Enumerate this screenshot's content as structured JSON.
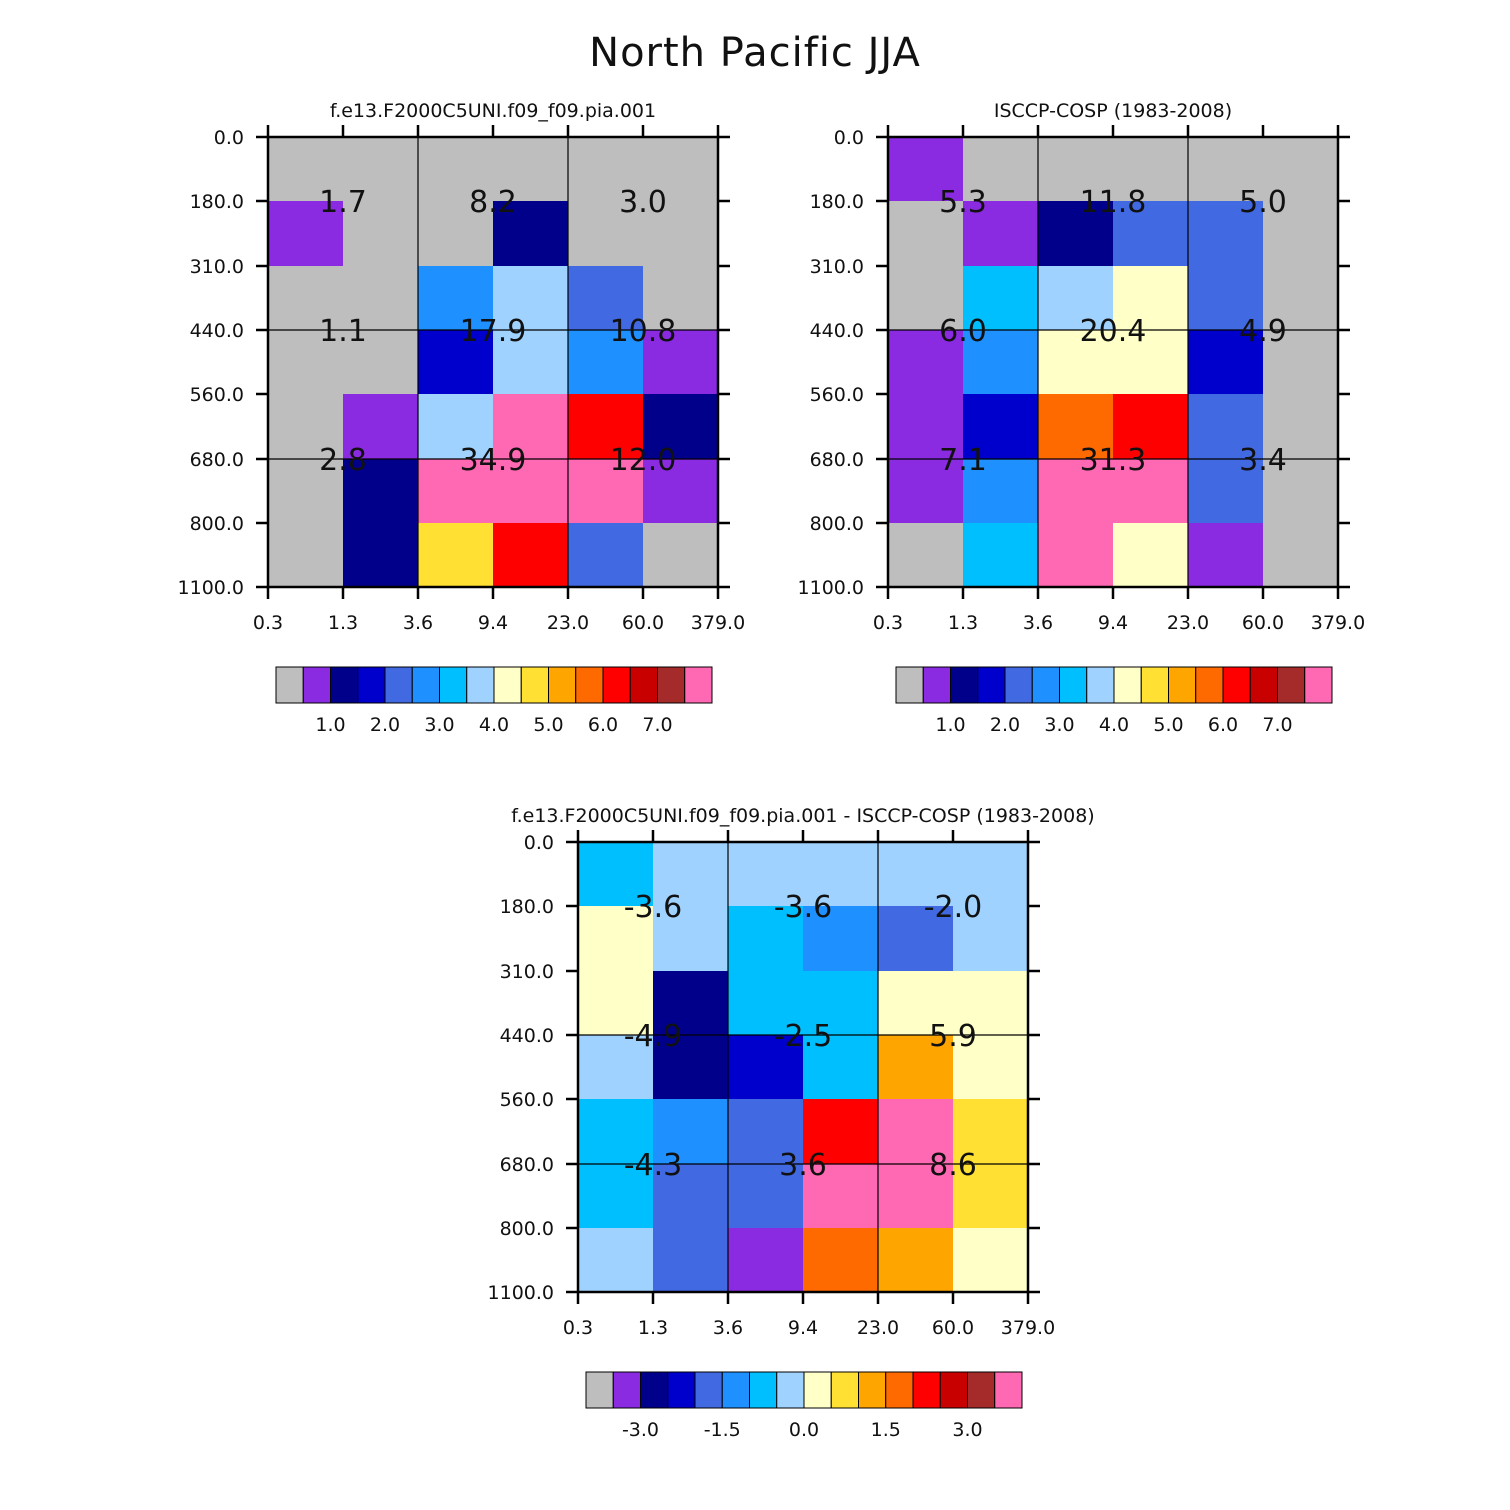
{
  "figure": {
    "title": "North Pacific JJA"
  },
  "palette": {
    "missing": "#bebebe",
    "bins": [
      "#8a2be2",
      "#00008b",
      "#0000cd",
      "#4169e1",
      "#1e90ff",
      "#00bfff",
      "#a0d2ff",
      "#ffffc8",
      "#ffe033",
      "#ffa500",
      "#ff6a00",
      "#ff0000",
      "#c80000",
      "#a52a2a",
      "#ff69b4"
    ]
  },
  "chart_data": [
    {
      "type": "heatmap",
      "id": "model",
      "title": "f.e13.F2000C5UNI.f09_f09.pia.001",
      "x_tick_labels": [
        "0.3",
        "1.3",
        "3.6",
        "9.4",
        "23.0",
        "60.0",
        "379.0"
      ],
      "y_tick_labels": [
        "0.0",
        "180.0",
        "310.0",
        "440.0",
        "560.0",
        "680.0",
        "800.0",
        "1100.0"
      ],
      "cells": [
        [
          0,
          0,
          0,
          0,
          0,
          0
        ],
        [
          1,
          0,
          0,
          2,
          0,
          0
        ],
        [
          0,
          0,
          5,
          7,
          4,
          0
        ],
        [
          0,
          0,
          3,
          7,
          5,
          1
        ],
        [
          0,
          1,
          7,
          15,
          12,
          2
        ],
        [
          0,
          2,
          15,
          15,
          15,
          1
        ],
        [
          0,
          2,
          9,
          12,
          4,
          0
        ]
      ],
      "box_labels": [
        [
          "1.7",
          "8.2",
          "3.0"
        ],
        [
          "1.1",
          "17.9",
          "10.8"
        ],
        [
          "2.8",
          "34.9",
          "12.0"
        ]
      ],
      "colorbar": {
        "tick_labels": [
          "1.0",
          "2.0",
          "3.0",
          "4.0",
          "5.0",
          "6.0",
          "7.0"
        ]
      }
    },
    {
      "type": "heatmap",
      "id": "obs",
      "title": "ISCCP-COSP (1983-2008)",
      "x_tick_labels": [
        "0.3",
        "1.3",
        "3.6",
        "9.4",
        "23.0",
        "60.0",
        "379.0"
      ],
      "y_tick_labels": [
        "0.0",
        "180.0",
        "310.0",
        "440.0",
        "560.0",
        "680.0",
        "800.0",
        "1100.0"
      ],
      "cells": [
        [
          1,
          0,
          0,
          0,
          0,
          0
        ],
        [
          0,
          1,
          2,
          4,
          4,
          0
        ],
        [
          0,
          6,
          7,
          8,
          4,
          0
        ],
        [
          1,
          5,
          8,
          8,
          3,
          0
        ],
        [
          1,
          3,
          11,
          12,
          4,
          0
        ],
        [
          1,
          5,
          15,
          15,
          4,
          0
        ],
        [
          0,
          6,
          15,
          8,
          1,
          0
        ]
      ],
      "box_labels": [
        [
          "5.3",
          "11.8",
          "5.0"
        ],
        [
          "6.0",
          "20.4",
          "4.9"
        ],
        [
          "7.1",
          "31.3",
          "3.4"
        ]
      ],
      "colorbar": {
        "tick_labels": [
          "1.0",
          "2.0",
          "3.0",
          "4.0",
          "5.0",
          "6.0",
          "7.0"
        ]
      }
    },
    {
      "type": "heatmap",
      "id": "diff",
      "title": "f.e13.F2000C5UNI.f09_f09.pia.001 - ISCCP-COSP (1983-2008)",
      "x_tick_labels": [
        "0.3",
        "1.3",
        "3.6",
        "9.4",
        "23.0",
        "60.0",
        "379.0"
      ],
      "y_tick_labels": [
        "0.0",
        "180.0",
        "310.0",
        "440.0",
        "560.0",
        "680.0",
        "800.0",
        "1100.0"
      ],
      "cells": [
        [
          6,
          7,
          7,
          7,
          7,
          7
        ],
        [
          8,
          7,
          6,
          5,
          4,
          7
        ],
        [
          8,
          2,
          6,
          6,
          8,
          8
        ],
        [
          7,
          2,
          3,
          6,
          10,
          8
        ],
        [
          6,
          5,
          4,
          12,
          15,
          9
        ],
        [
          6,
          4,
          4,
          15,
          15,
          9
        ],
        [
          7,
          4,
          1,
          11,
          10,
          8
        ]
      ],
      "box_labels": [
        [
          "-3.6",
          "-3.6",
          "-2.0"
        ],
        [
          "-4.9",
          "-2.5",
          "5.9"
        ],
        [
          "-4.3",
          "3.6",
          "8.6"
        ]
      ],
      "colorbar": {
        "tick_labels": [
          "-3.0",
          "-1.5",
          "0.0",
          "1.5",
          "3.0"
        ]
      }
    }
  ]
}
